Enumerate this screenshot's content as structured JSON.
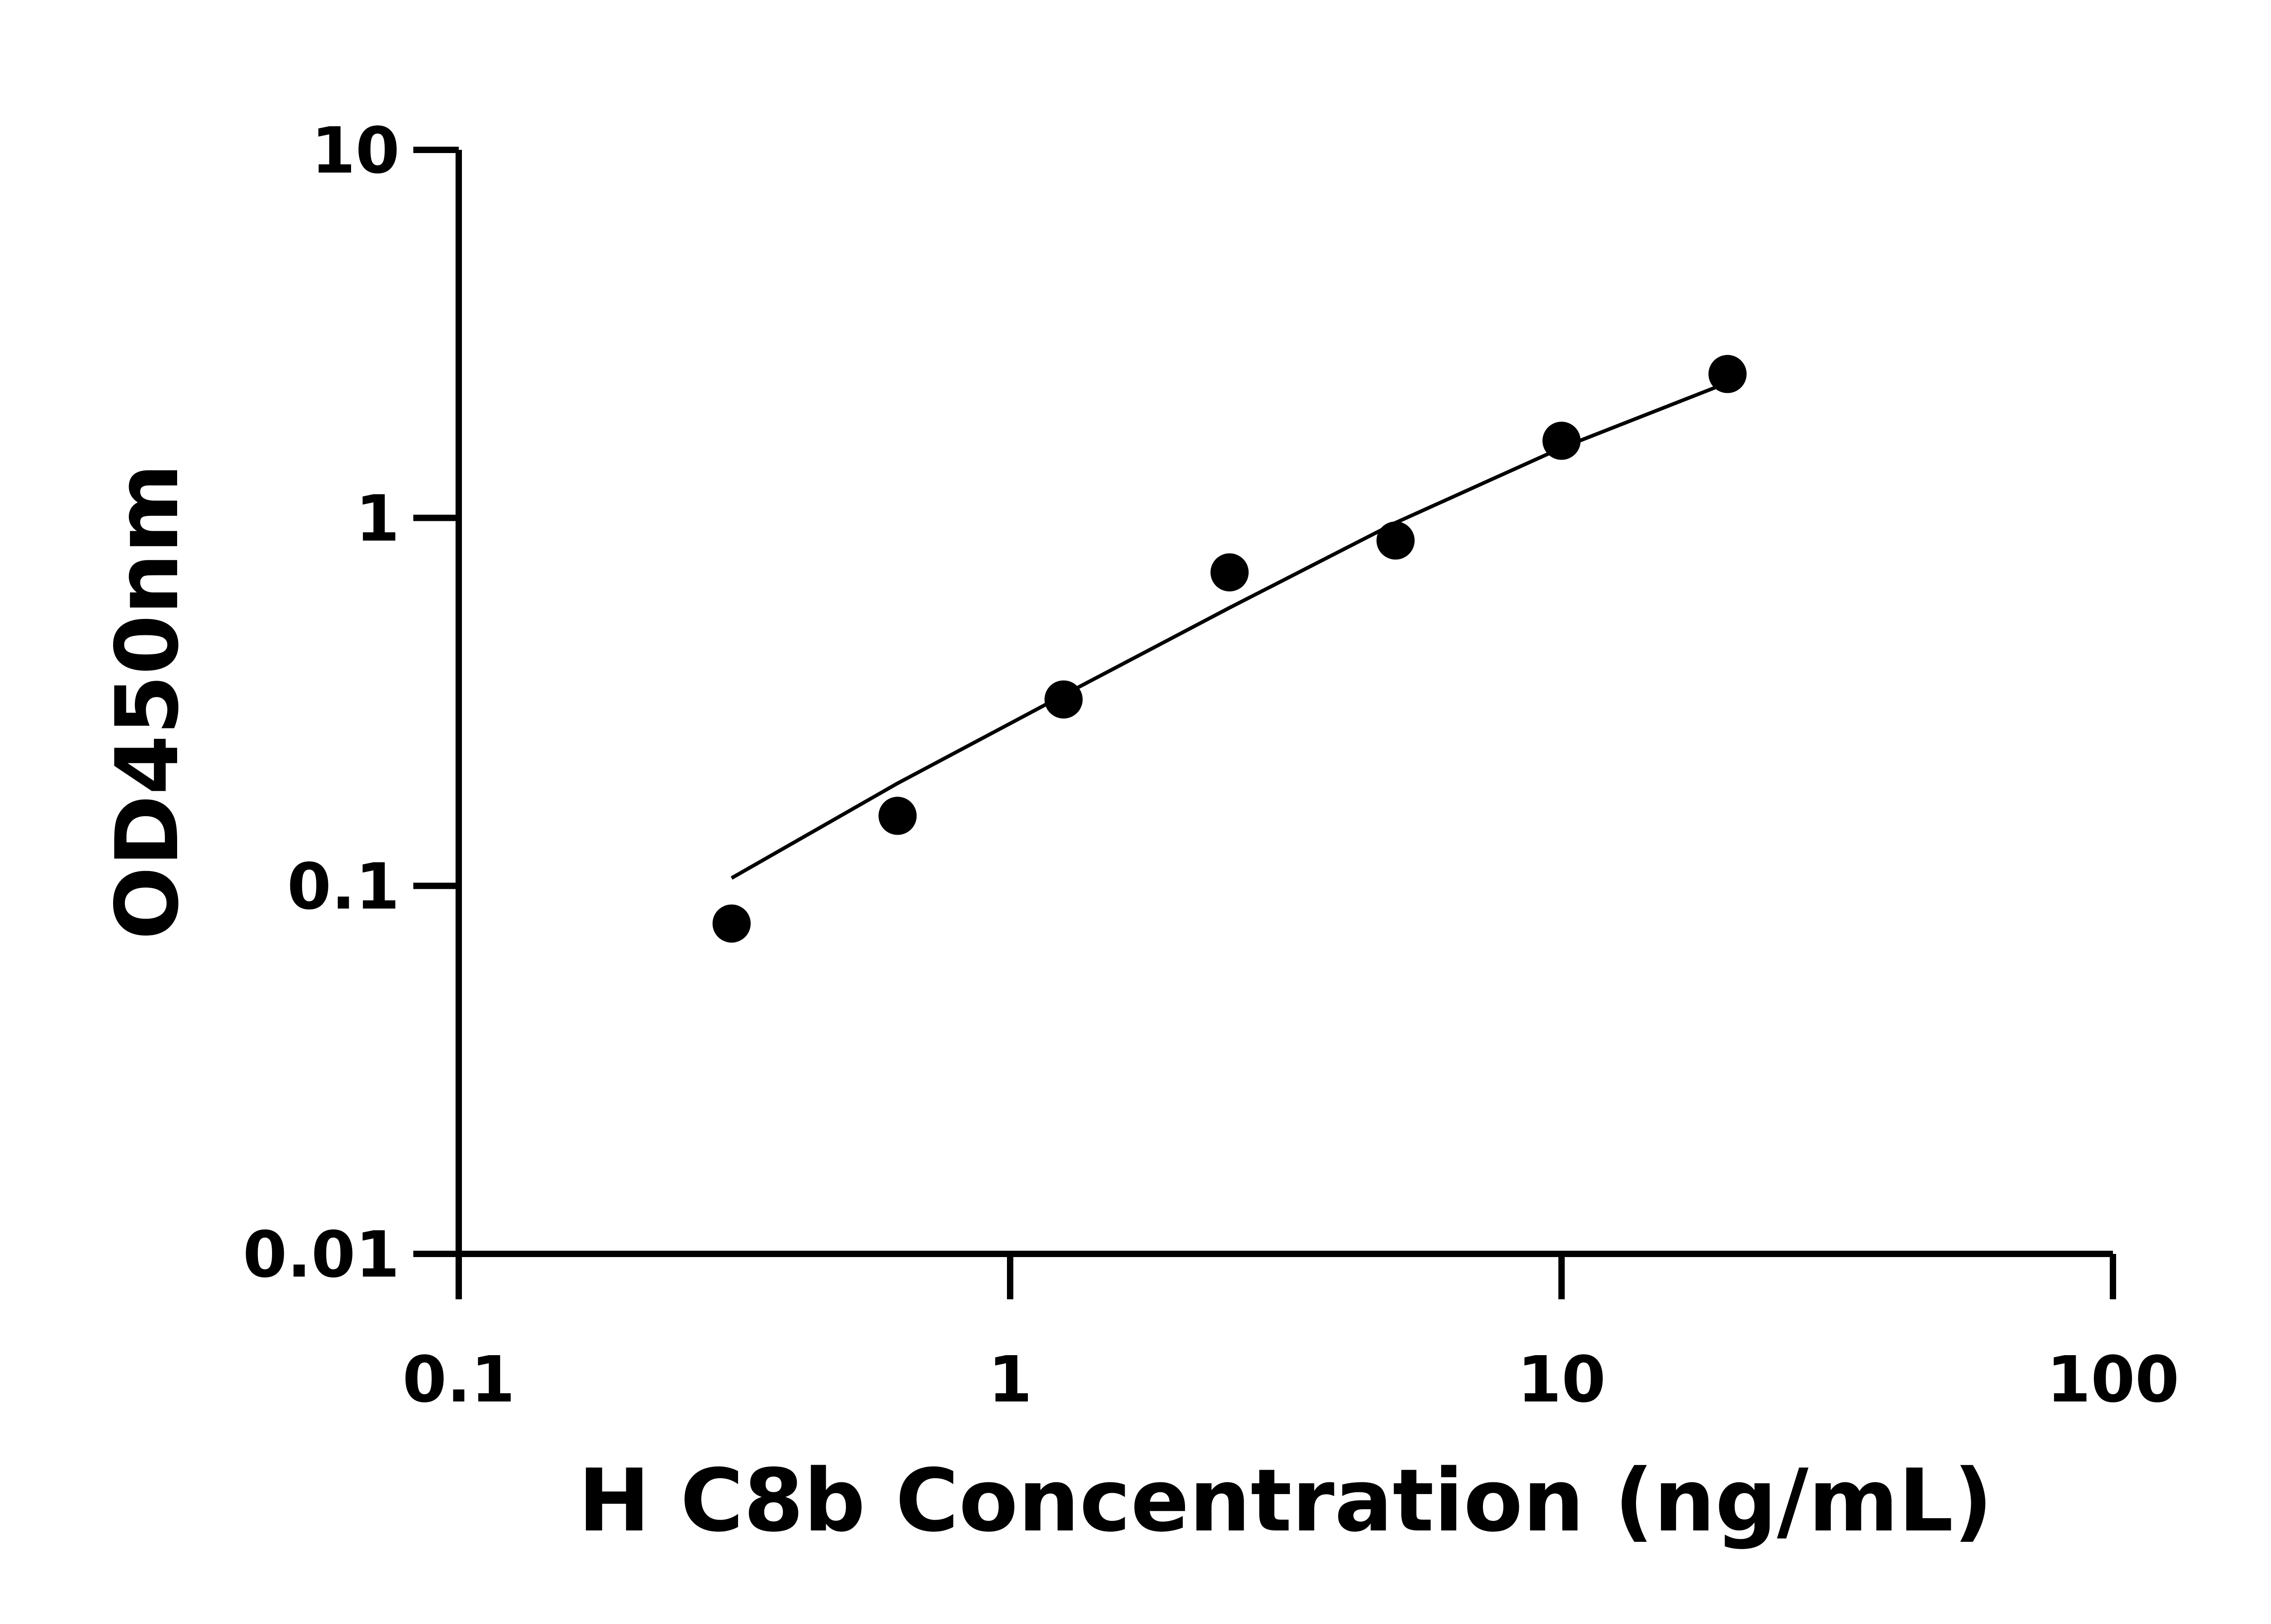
{
  "chart_data": {
    "type": "scatter",
    "title": "",
    "xlabel": "H C8b Concentration (ng/mL)",
    "ylabel": "OD450nm",
    "x_scale": "log",
    "y_scale": "log",
    "xlim": [
      0.1,
      100
    ],
    "ylim": [
      0.01,
      10
    ],
    "x_ticks": [
      "0.1",
      "1",
      "10",
      "100"
    ],
    "y_ticks": [
      "0.01",
      "0.1",
      "1",
      "10"
    ],
    "x_tick_values": [
      0.1,
      1,
      10,
      100
    ],
    "y_tick_values": [
      0.01,
      0.1,
      1,
      10
    ],
    "grid": false,
    "legend": "none",
    "color": "#000000",
    "series": [
      {
        "type": "scatter",
        "x": [
          0.3125,
          0.625,
          1.25,
          2.5,
          5,
          10,
          20
        ],
        "y": [
          0.079,
          0.155,
          0.321,
          0.711,
          0.868,
          1.62,
          2.46
        ]
      },
      {
        "type": "line",
        "x": [
          0.3125,
          0.625,
          1.25,
          2.5,
          5,
          10,
          20
        ],
        "y": [
          0.105,
          0.19,
          0.33,
          0.57,
          0.97,
          1.55,
          2.33
        ]
      }
    ]
  }
}
